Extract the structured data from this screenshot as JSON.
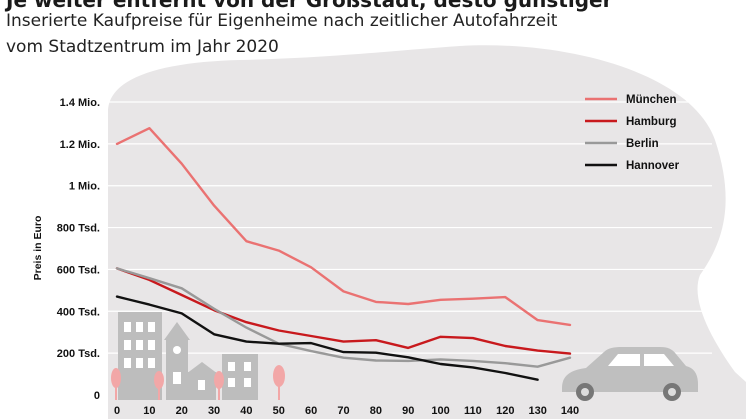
{
  "header": {
    "title": "Je weiter entfernt von der Großstadt, desto günstiger",
    "subtitle_line1": "Inserierte Kaufpreise für Eigenheime nach zeitlicher Autofahrzeit",
    "subtitle_line2": "vom Stadtzentrum im Jahr 2020"
  },
  "colors": {
    "blob": "#e8e6e7",
    "buildings": "#bdbdbd",
    "building_windows": "#ffffff",
    "trees": "#f2a7a7",
    "car": "#bfbfbf"
  },
  "chart_data": {
    "type": "line",
    "ylabel": "Preis in Euro",
    "xlabel": "",
    "ylim": [
      0,
      1400000
    ],
    "y_ticks": [
      {
        "value": 0,
        "label": "0"
      },
      {
        "value": 200000,
        "label": "200 Tsd."
      },
      {
        "value": 400000,
        "label": "400 Tsd."
      },
      {
        "value": 600000,
        "label": "600 Tsd."
      },
      {
        "value": 800000,
        "label": "800 Tsd."
      },
      {
        "value": 1000000,
        "label": "1 Mio."
      },
      {
        "value": 1200000,
        "label": "1.2 Mio."
      },
      {
        "value": 1400000,
        "label": "1.4 Mio."
      }
    ],
    "x_ticks": [
      0,
      10,
      20,
      30,
      40,
      50,
      60,
      70,
      80,
      90,
      100,
      110,
      120,
      130,
      140
    ],
    "grid": true,
    "legend_position": "top-right",
    "x": [
      0,
      10,
      20,
      30,
      40,
      50,
      60,
      70,
      80,
      90,
      100,
      110,
      120,
      130,
      140
    ],
    "series": [
      {
        "name": "München",
        "color": "#ea7272",
        "values": [
          1200000,
          1275000,
          1105000,
          905000,
          735000,
          690000,
          610000,
          495000,
          445000,
          435000,
          455000,
          460000,
          468000,
          358000,
          335000
        ]
      },
      {
        "name": "Hamburg",
        "color": "#c8191d",
        "values": [
          605000,
          550000,
          478000,
          405000,
          348000,
          308000,
          282000,
          255000,
          262000,
          225000,
          278000,
          272000,
          234000,
          212000,
          198000
        ]
      },
      {
        "name": "Berlin",
        "color": "#999999",
        "values": [
          605000,
          558000,
          510000,
          412000,
          322000,
          245000,
          210000,
          178000,
          165000,
          163000,
          170000,
          163000,
          152000,
          135000,
          178000
        ]
      },
      {
        "name": "Hannover",
        "color": "#111111",
        "values": [
          470000,
          432000,
          390000,
          290000,
          255000,
          245000,
          248000,
          205000,
          202000,
          180000,
          148000,
          132000,
          105000,
          73000,
          null
        ]
      }
    ]
  }
}
